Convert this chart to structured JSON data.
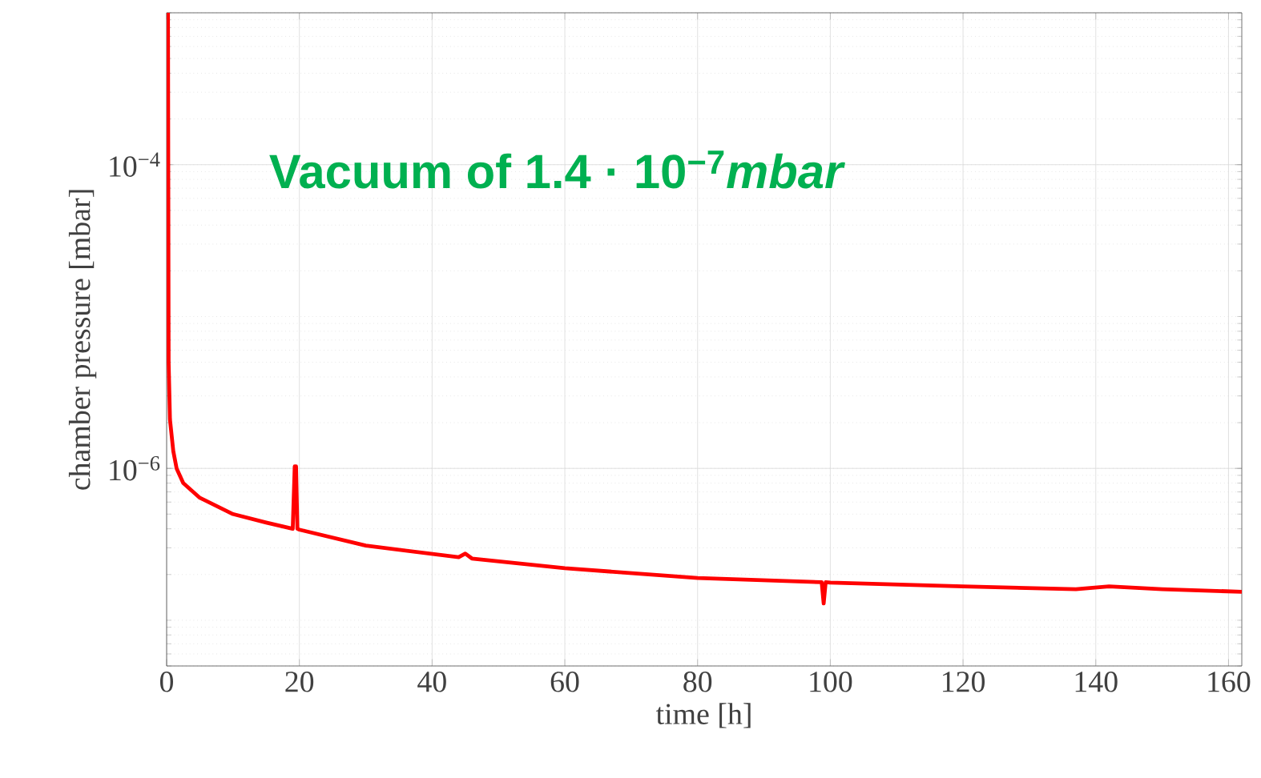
{
  "chart_data": {
    "type": "line",
    "xlabel": "time [h]",
    "ylabel": "chamber pressure [mbar]",
    "annotations": [
      "Vacuum of 1.4 · 10$^{−7}$*mbar*"
    ],
    "log": "y",
    "grid": true,
    "marker": "none",
    "line_style": "solid",
    "xlim": [
      0,
      162
    ],
    "xticks": [
      0,
      20,
      40,
      60,
      80,
      100,
      120,
      140,
      160
    ],
    "ylim": [
      5e-08,
      0.001
    ],
    "yticks": [
      {
        "value": 0.0001,
        "label": "10$^{−4}$"
      },
      {
        "value": 1e-06,
        "label": "10$^{−6}$"
      }
    ],
    "series": [
      {
        "color": "#ff0000",
        "x": [
          0.2,
          0.3,
          0.5,
          1,
          1.5,
          2.5,
          5,
          10,
          15,
          19,
          19.3,
          19.5,
          19.7,
          20,
          30,
          44,
          45,
          46,
          60,
          80,
          98.7,
          99,
          99.3,
          100,
          120,
          137,
          142,
          150,
          162
        ],
        "values": [
          0.001,
          5e-06,
          2.1e-06,
          1.3e-06,
          1e-06,
          8e-07,
          6.4e-07,
          5e-07,
          4.4e-07,
          4e-07,
          1.03e-06,
          1.03e-06,
          4e-07,
          3.95e-07,
          3.1e-07,
          2.6e-07,
          2.75e-07,
          2.55e-07,
          2.2e-07,
          1.9e-07,
          1.78e-07,
          1.29e-07,
          1.78e-07,
          1.77e-07,
          1.67e-07,
          1.6e-07,
          1.67e-07,
          1.6e-07,
          1.54e-07
        ]
      }
    ]
  }
}
